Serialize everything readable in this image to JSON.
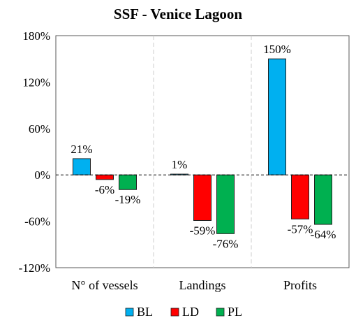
{
  "chart_data": {
    "type": "bar",
    "title": "SSF - Venice Lagoon",
    "categories": [
      "N° of vessels",
      "Landings",
      "Profits"
    ],
    "series": [
      {
        "name": "BL",
        "color": "#00B0F0",
        "values": [
          21,
          1,
          150
        ],
        "labels": [
          "21%",
          "1%",
          "150%"
        ]
      },
      {
        "name": "LD",
        "color": "#FF0000",
        "values": [
          -6,
          -59,
          -57
        ],
        "labels": [
          "-6%",
          "-59%",
          "-57%"
        ]
      },
      {
        "name": "PL",
        "color": "#00B050",
        "values": [
          -19,
          -76,
          -64
        ],
        "labels": [
          "-19%",
          "-76%",
          "-64%"
        ]
      }
    ],
    "ylim": [
      -120,
      180
    ],
    "yticks": [
      -120,
      -60,
      0,
      60,
      120,
      180
    ],
    "ytick_labels": [
      "-120%",
      "-60%",
      "0%",
      "60%",
      "120%",
      "180%"
    ],
    "zero_line": "dashed",
    "category_separators": "dashed",
    "legend_position": "bottom"
  }
}
